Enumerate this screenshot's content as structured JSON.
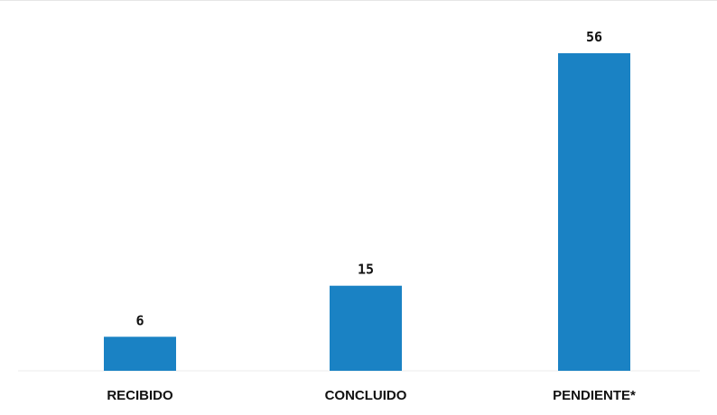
{
  "chart_data": {
    "type": "bar",
    "categories": [
      "RECIBIDO",
      "CONCLUIDO",
      "PENDIENTE*"
    ],
    "values": [
      6,
      15,
      56
    ],
    "title": "",
    "xlabel": "",
    "ylabel": "",
    "ylim": [
      0,
      56
    ],
    "grid": false,
    "legend": "none",
    "bar_color": "#1a82c4"
  }
}
